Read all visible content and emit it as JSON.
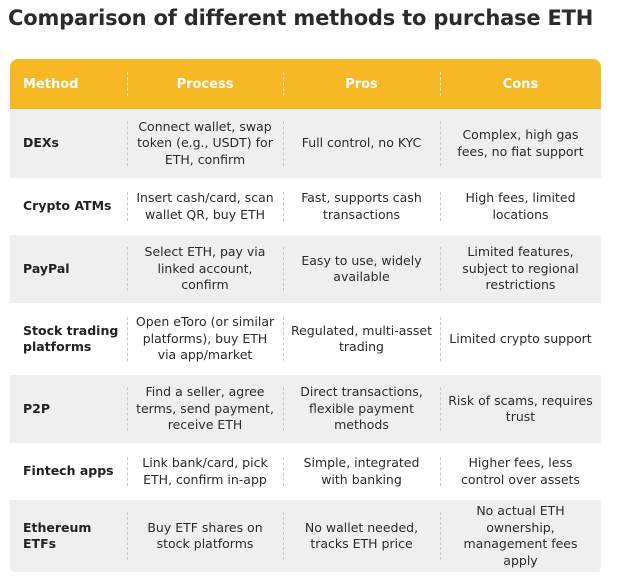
{
  "title": "Comparison of different methods to purchase ETH",
  "headers": [
    "Method",
    "Process",
    "Pros",
    "Cons"
  ],
  "rows": [
    {
      "method": "DEXs",
      "process": "Connect wallet, swap token (e.g., USDT) for ETH, confirm",
      "pros": "Full control, no KYC",
      "cons": "Complex, high gas fees, no fiat support"
    },
    {
      "method": "Crypto ATMs",
      "process": "Insert cash/card, scan wallet QR, buy ETH",
      "pros": "Fast, supports cash transactions",
      "cons": "High fees, limited locations"
    },
    {
      "method": "PayPal",
      "process": "Select ETH, pay via linked account, confirm",
      "pros": "Easy to use, widely available",
      "cons": "Limited features, subject to regional restrictions"
    },
    {
      "method": "Stock trading platforms",
      "process": "Open eToro (or similar platforms), buy ETH via app/market",
      "pros": "Regulated, multi-asset trading",
      "cons": "Limited crypto support"
    },
    {
      "method": "P2P",
      "process": "Find a seller, agree terms, send payment, receive ETH",
      "pros": "Direct transactions, flexible payment methods",
      "cons": "Risk of scams, requires trust"
    },
    {
      "method": "Fintech apps",
      "process": "Link bank/card, pick ETH, confirm in-app",
      "pros": "Simple, integrated with banking",
      "cons": "Higher fees, less control over assets"
    },
    {
      "method": "Ethereum ETFs",
      "process": "Buy ETF shares on stock platforms",
      "pros": "No wallet needed, tracks ETH price",
      "cons": "No actual ETH ownership, management fees apply"
    }
  ]
}
